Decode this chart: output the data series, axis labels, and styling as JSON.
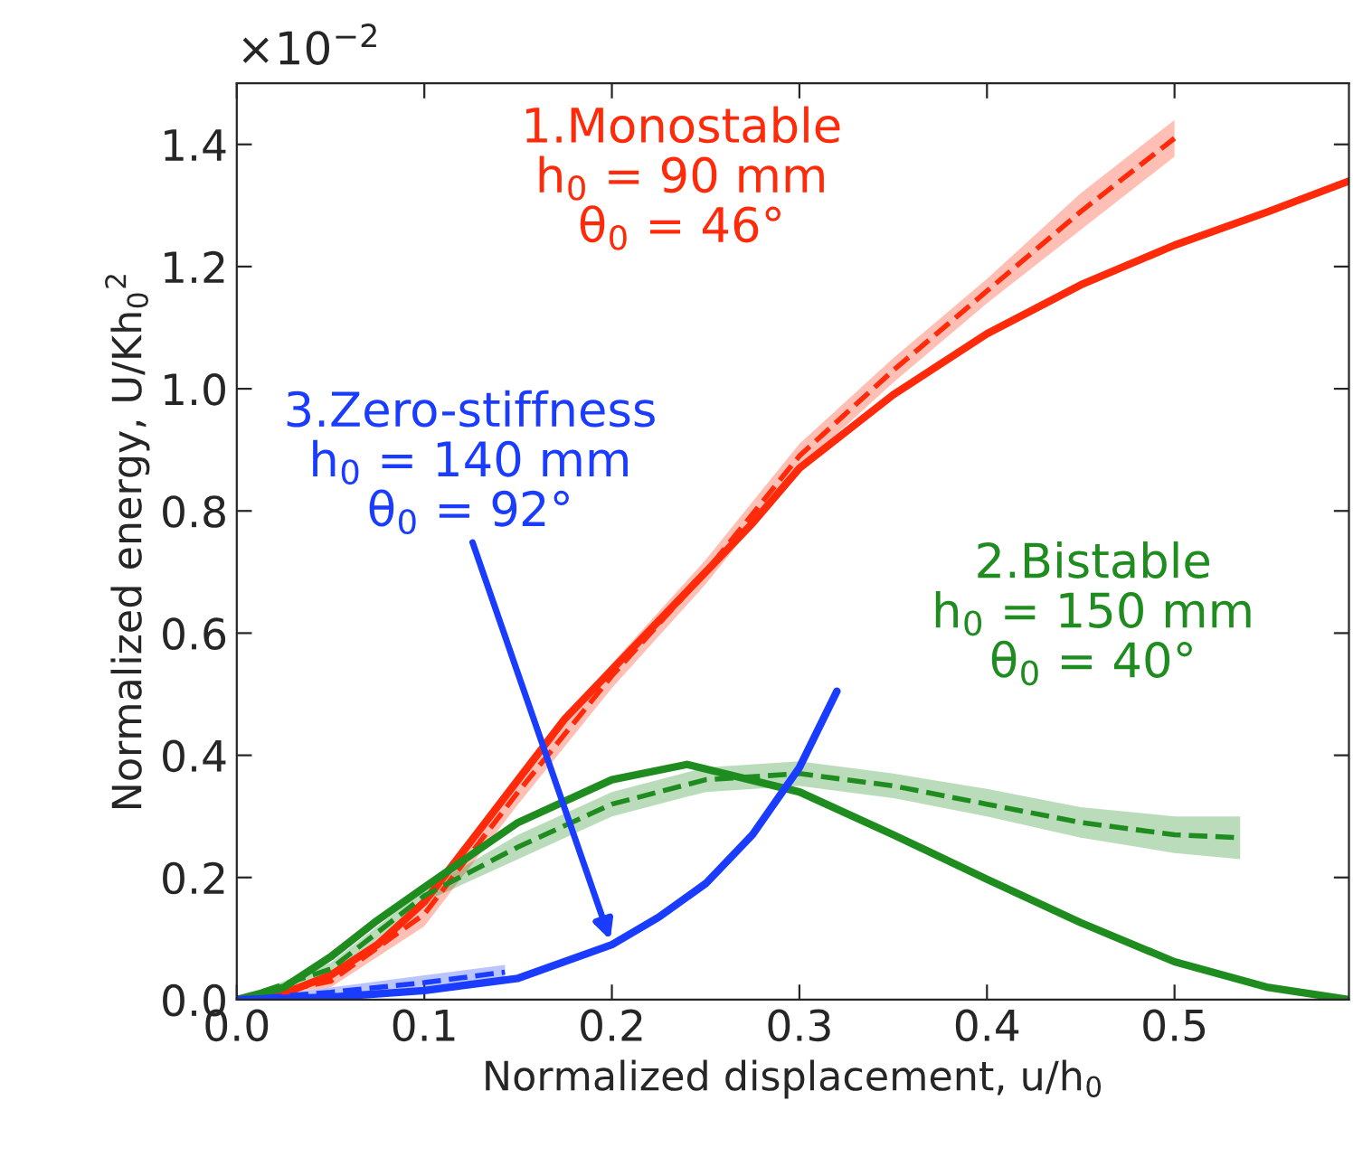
{
  "chart_data": {
    "type": "line",
    "xlabel": "Normalized displacement, u/h$_{0}$",
    "ylabel": "Normalized energy, U/Kh$_{0}$$^{2}$",
    "xlim": [
      0,
      0.593
    ],
    "ylim": [
      0,
      1.5
    ],
    "xticks": [
      {
        "value": 0,
        "label": "0.0"
      },
      0.1,
      0.2,
      0.3,
      0.4,
      0.5
    ],
    "yticks": [
      {
        "value": 0,
        "label": "0.0"
      },
      0.2,
      0.4,
      0.6,
      0.8,
      {
        "value": 1.0,
        "label": "1.0"
      },
      1.2,
      1.4
    ],
    "grid": false,
    "legend": false,
    "annotations": [
      "×10$^{−2}$"
    ],
    "series": [
      {
        "name": "1.Monostable\nh$_{0}$ = 90 mm\nθ$_{0}$ = 46°",
        "color": "#ff2a0a",
        "line_style": "solid",
        "x": [
          0,
          0.025,
          0.05,
          0.075,
          0.1,
          0.125,
          0.15,
          0.175,
          0.2,
          0.225,
          0.25,
          0.275,
          0.3,
          0.35,
          0.4,
          0.45,
          0.5,
          0.55,
          0.593
        ],
        "values": [
          0,
          0.01,
          0.04,
          0.09,
          0.16,
          0.26,
          0.36,
          0.46,
          0.54,
          0.62,
          0.7,
          0.78,
          0.87,
          0.99,
          1.09,
          1.17,
          1.235,
          1.29,
          1.34
        ]
      },
      {
        "color": "#ff2a0a",
        "line_style": "dashed",
        "x": [
          0,
          0.05,
          0.1,
          0.15,
          0.2,
          0.25,
          0.3,
          0.35,
          0.4,
          0.45,
          0.5
        ],
        "values": [
          0,
          0.03,
          0.14,
          0.34,
          0.53,
          0.7,
          0.89,
          1.03,
          1.16,
          1.29,
          1.41
        ],
        "lower": [
          0,
          0.02,
          0.12,
          0.32,
          0.51,
          0.68,
          0.87,
          1.01,
          1.14,
          1.26,
          1.38
        ],
        "upper": [
          0,
          0.04,
          0.16,
          0.36,
          0.55,
          0.72,
          0.91,
          1.05,
          1.18,
          1.32,
          1.44
        ]
      },
      {
        "name": "2.Bistable\nh$_{0}$ = 150 mm\nθ$_{0}$ = 40°",
        "color": "#1f8c1f",
        "line_style": "solid",
        "x": [
          0,
          0.025,
          0.05,
          0.075,
          0.1,
          0.15,
          0.2,
          0.24,
          0.3,
          0.35,
          0.4,
          0.45,
          0.5,
          0.55,
          0.593
        ],
        "values": [
          0,
          0.02,
          0.07,
          0.13,
          0.184,
          0.29,
          0.36,
          0.385,
          0.34,
          0.27,
          0.197,
          0.126,
          0.062,
          0.02,
          0
        ]
      },
      {
        "color": "#1f8c1f",
        "line_style": "dashed",
        "x": [
          0,
          0.05,
          0.1,
          0.15,
          0.2,
          0.25,
          0.3,
          0.35,
          0.4,
          0.45,
          0.5,
          0.535
        ],
        "values": [
          0,
          0.05,
          0.17,
          0.25,
          0.32,
          0.36,
          0.37,
          0.35,
          0.32,
          0.29,
          0.27,
          0.265
        ],
        "lower": [
          0,
          0.04,
          0.16,
          0.23,
          0.3,
          0.34,
          0.35,
          0.33,
          0.3,
          0.265,
          0.24,
          0.23
        ],
        "upper": [
          0,
          0.06,
          0.18,
          0.27,
          0.34,
          0.38,
          0.39,
          0.37,
          0.345,
          0.315,
          0.3,
          0.3
        ]
      },
      {
        "name": "3.Zero-stiffness\nh$_{0}$ = 140 mm\nθ$_{0}$ = 92°",
        "color": "#1a3cff",
        "line_style": "solid",
        "x": [
          0,
          0.05,
          0.1,
          0.15,
          0.2,
          0.225,
          0.25,
          0.275,
          0.3,
          0.32
        ],
        "values": [
          0,
          0.004,
          0.015,
          0.035,
          0.09,
          0.135,
          0.19,
          0.27,
          0.38,
          0.505
        ]
      },
      {
        "color": "#1a3cff",
        "line_style": "dashed",
        "x": [
          0,
          0.05,
          0.1,
          0.143
        ],
        "values": [
          0,
          0.012,
          0.028,
          0.045
        ],
        "lower": [
          0,
          0.004,
          0.016,
          0.033
        ],
        "upper": [
          0,
          0.02,
          0.04,
          0.057
        ]
      }
    ]
  }
}
